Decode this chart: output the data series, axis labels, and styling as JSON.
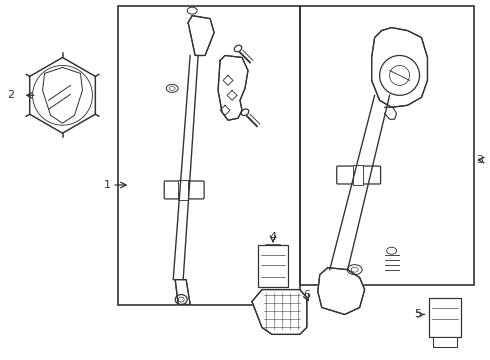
{
  "background_color": "#ffffff",
  "line_color": "#333333",
  "label_color": "#111111",
  "fig_width": 4.9,
  "fig_height": 3.6,
  "dpi": 100
}
